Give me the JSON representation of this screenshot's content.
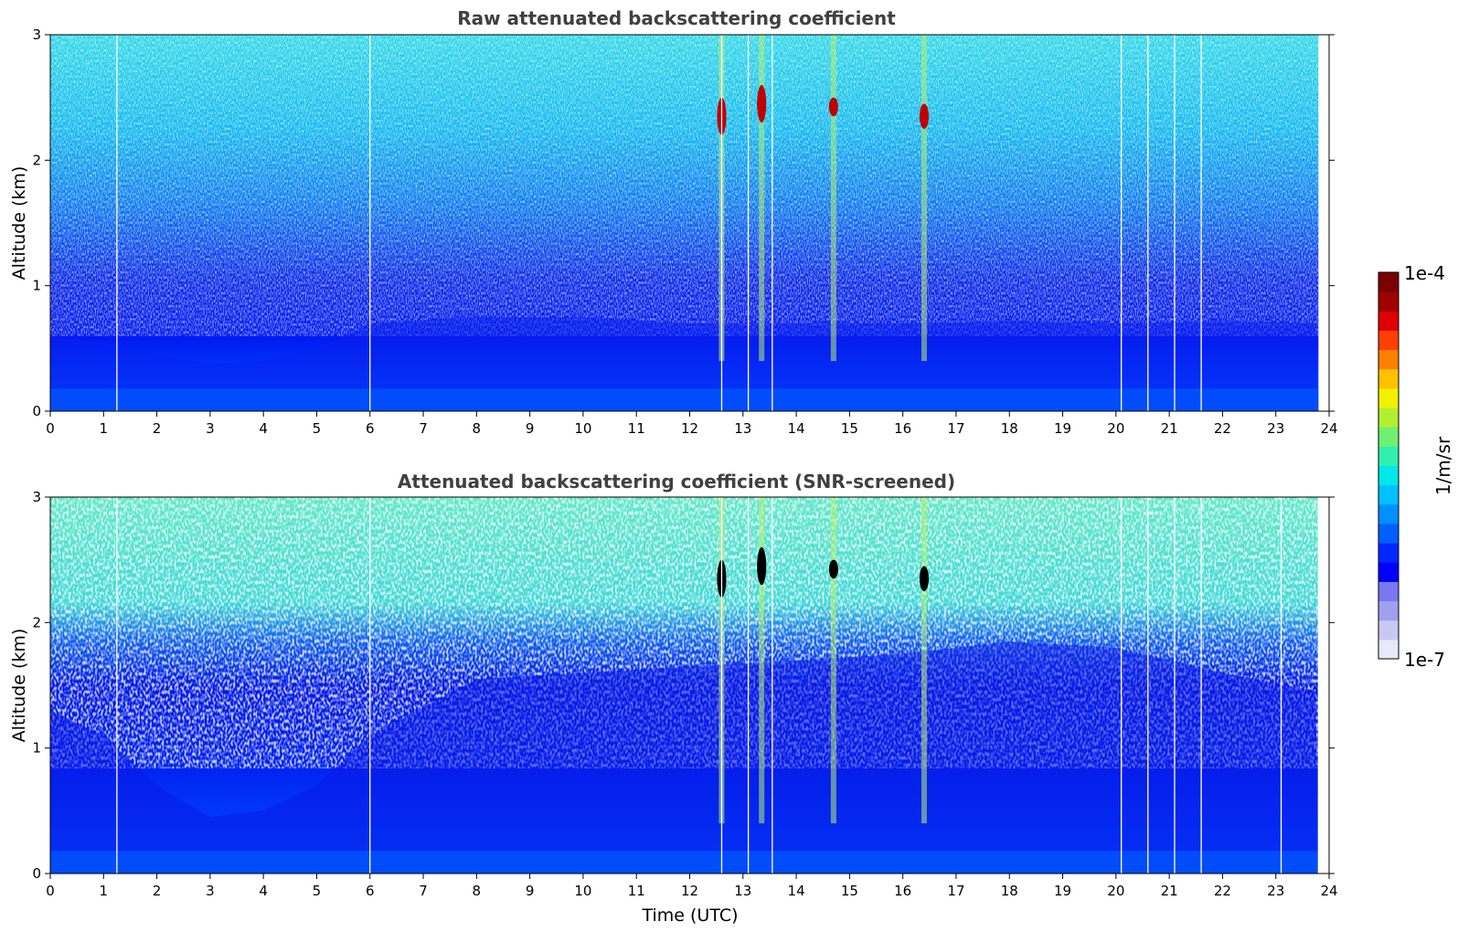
{
  "chart_data": [
    {
      "type": "heatmap",
      "title": "Raw attenuated backscattering coefficient",
      "xlabel": "",
      "ylabel": "Altitude (km)",
      "xlim": [
        0,
        24
      ],
      "ylim": [
        0,
        3
      ],
      "xticks": [
        "0",
        "1",
        "2",
        "3",
        "4",
        "5",
        "6",
        "7",
        "8",
        "9",
        "10",
        "11",
        "12",
        "13",
        "14",
        "15",
        "16",
        "17",
        "18",
        "19",
        "20",
        "21",
        "22",
        "23",
        "24"
      ],
      "yticks": [
        "0",
        "1",
        "2",
        "3"
      ],
      "data_extent_hours": [
        0,
        23.8
      ],
      "colorscale": "jet (log)",
      "value_range": [
        "1e-7",
        "1e-4"
      ],
      "cloud_features": [
        {
          "time": 12.6,
          "altitude_range": [
            2.2,
            2.5
          ]
        },
        {
          "time": 13.35,
          "altitude_range": [
            2.3,
            2.6
          ]
        },
        {
          "time": 14.7,
          "altitude_range": [
            2.35,
            2.5
          ]
        },
        {
          "time": 16.4,
          "altitude_range": [
            2.25,
            2.45
          ]
        }
      ],
      "boundary_layer_top_km": [
        [
          0,
          0.6
        ],
        [
          1,
          0.55
        ],
        [
          2,
          0.45
        ],
        [
          3,
          0.38
        ],
        [
          4,
          0.4
        ],
        [
          5,
          0.5
        ],
        [
          6,
          0.7
        ],
        [
          8,
          0.75
        ],
        [
          10,
          0.75
        ],
        [
          12,
          0.7
        ],
        [
          14,
          0.7
        ],
        [
          16,
          0.7
        ],
        [
          18,
          0.72
        ],
        [
          20,
          0.7
        ],
        [
          22,
          0.72
        ],
        [
          23.8,
          0.7
        ]
      ],
      "data_gaps_hours": [
        1.25,
        6.0,
        12.6,
        13.1,
        13.55,
        20.1,
        20.6,
        21.1,
        21.6
      ]
    },
    {
      "type": "heatmap",
      "title": "Attenuated backscattering coefficient (SNR-screened)",
      "xlabel": "Time (UTC)",
      "ylabel": "Altitude (km)",
      "xlim": [
        0,
        24
      ],
      "ylim": [
        0,
        3
      ],
      "xticks": [
        "0",
        "1",
        "2",
        "3",
        "4",
        "5",
        "6",
        "7",
        "8",
        "9",
        "10",
        "11",
        "12",
        "13",
        "14",
        "15",
        "16",
        "17",
        "18",
        "19",
        "20",
        "21",
        "22",
        "23",
        "24"
      ],
      "yticks": [
        "0",
        "1",
        "2",
        "3"
      ],
      "data_extent_hours": [
        0,
        23.8
      ],
      "colorscale": "jet (log)",
      "value_range": [
        "1e-7",
        "1e-4"
      ],
      "cloud_features": [
        {
          "time": 12.6,
          "altitude_range": [
            2.2,
            2.5
          ]
        },
        {
          "time": 13.35,
          "altitude_range": [
            2.3,
            2.6
          ]
        },
        {
          "time": 14.7,
          "altitude_range": [
            2.35,
            2.5
          ]
        },
        {
          "time": 16.4,
          "altitude_range": [
            2.25,
            2.45
          ]
        }
      ],
      "boundary_layer_top_km": [
        [
          0,
          1.3
        ],
        [
          1,
          1.1
        ],
        [
          2,
          0.7
        ],
        [
          3,
          0.45
        ],
        [
          4,
          0.5
        ],
        [
          5,
          0.7
        ],
        [
          6,
          1.1
        ],
        [
          8,
          1.55
        ],
        [
          10,
          1.6
        ],
        [
          12,
          1.65
        ],
        [
          14,
          1.7
        ],
        [
          16,
          1.75
        ],
        [
          18,
          1.85
        ],
        [
          20,
          1.8
        ],
        [
          22,
          1.6
        ],
        [
          23.8,
          1.45
        ]
      ],
      "data_gaps_hours": [
        1.25,
        6.0,
        12.6,
        13.1,
        13.55,
        20.1,
        20.6,
        21.1,
        21.6,
        23.1,
        23.8
      ]
    }
  ],
  "colorbar": {
    "label": "1/m/sr",
    "max_label": "1e-4",
    "min_label": "1e-7",
    "colors": [
      "#e8e8f8",
      "#c8c8f0",
      "#a0a0f0",
      "#7878f0",
      "#0000ff",
      "#0028ff",
      "#0060ff",
      "#0090ff",
      "#00c0ff",
      "#00e8e8",
      "#30f0b0",
      "#70f070",
      "#b0f030",
      "#f0f000",
      "#ffc000",
      "#ff8000",
      "#ff4000",
      "#e00000",
      "#a00000",
      "#7a0000"
    ]
  }
}
